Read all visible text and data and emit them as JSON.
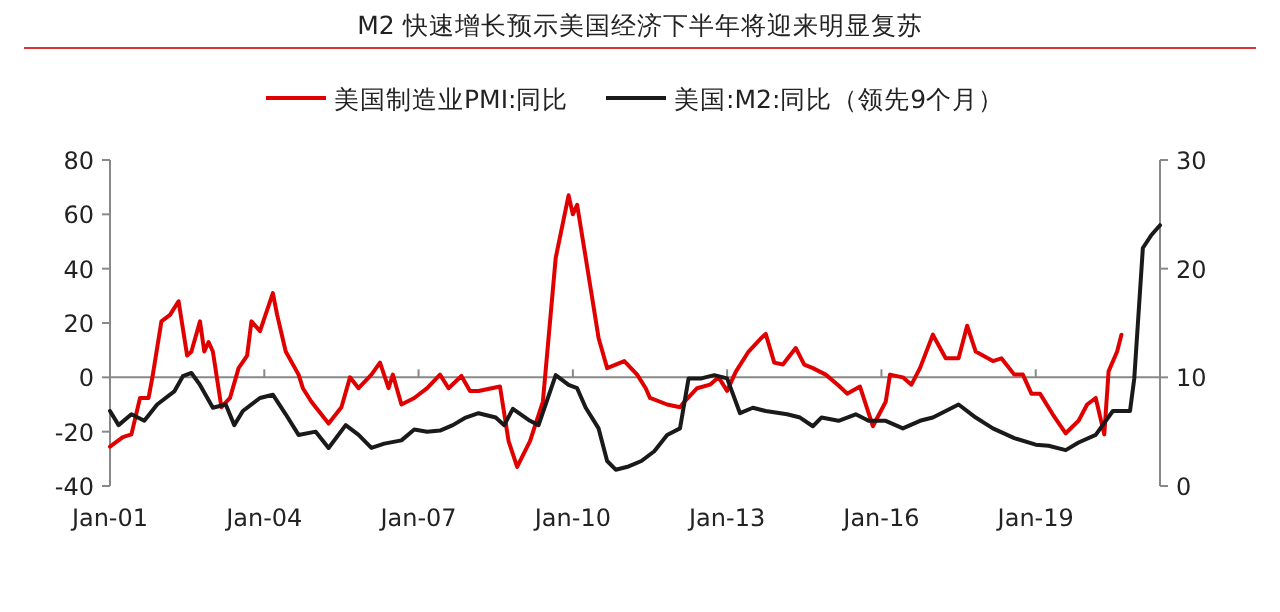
{
  "chart_data": {
    "type": "line",
    "title": "M2 快速增长预示美国经济下半年将迎来明显复苏",
    "legend": "top",
    "xlim": [
      "2001-01",
      "2021-06"
    ],
    "xticks": [
      {
        "value": "2001-01",
        "label": "Jan-01"
      },
      {
        "value": "2004-01",
        "label": "Jan-04"
      },
      {
        "value": "2007-01",
        "label": "Jan-07"
      },
      {
        "value": "2010-01",
        "label": "Jan-10"
      },
      {
        "value": "2013-01",
        "label": "Jan-13"
      },
      {
        "value": "2016-01",
        "label": "Jan-16"
      },
      {
        "value": "2019-01",
        "label": "Jan-19"
      }
    ],
    "ylim": [
      -40,
      80
    ],
    "yticks": [
      -40,
      -20,
      0,
      20,
      40,
      60,
      80
    ],
    "y2lim": [
      0,
      30
    ],
    "y2ticks": [
      0,
      10,
      20,
      30
    ],
    "series": [
      {
        "name": "美国制造业PMI:同比",
        "color": "#e00000",
        "x": [
          "2001-01",
          "2001-04",
          "2001-06",
          "2001-08",
          "2001-10",
          "2001-11",
          "2002-01",
          "2002-03",
          "2002-05",
          "2002-07",
          "2002-08",
          "2002-10",
          "2002-11",
          "2002-12",
          "2003-01",
          "2003-03",
          "2003-05",
          "2003-07",
          "2003-09",
          "2003-10",
          "2003-12",
          "2004-03",
          "2004-04",
          "2004-06",
          "2004-09",
          "2004-10",
          "2004-12",
          "2005-04",
          "2005-07",
          "2005-09",
          "2005-11",
          "2006-02",
          "2006-04",
          "2006-06",
          "2006-07",
          "2006-09",
          "2006-12",
          "2007-03",
          "2007-06",
          "2007-08",
          "2007-11",
          "2008-01",
          "2008-03",
          "2008-08",
          "2008-10",
          "2008-12",
          "2009-03",
          "2009-06",
          "2009-09",
          "2009-12",
          "2010-01",
          "2010-02",
          "2010-04",
          "2010-07",
          "2010-09",
          "2011-01",
          "2011-04",
          "2011-06",
          "2011-07",
          "2011-11",
          "2012-02",
          "2012-03",
          "2012-06",
          "2012-09",
          "2012-11",
          "2013-01",
          "2013-03",
          "2013-06",
          "2013-09",
          "2013-10",
          "2013-12",
          "2014-02",
          "2014-05",
          "2014-07",
          "2014-09",
          "2014-12",
          "2015-03",
          "2015-05",
          "2015-08",
          "2015-11",
          "2016-02",
          "2016-03",
          "2016-06",
          "2016-08",
          "2016-10",
          "2017-01",
          "2017-04",
          "2017-07",
          "2017-09",
          "2017-11",
          "2018-03",
          "2018-05",
          "2018-08",
          "2018-10",
          "2018-12",
          "2019-02",
          "2019-05",
          "2019-08",
          "2019-11",
          "2020-01",
          "2020-03",
          "2020-05",
          "2020-06",
          "2020-08",
          "2020-09"
        ],
        "values": [
          -25.5,
          -22,
          -21,
          -7.6,
          -7.6,
          1,
          20.6,
          23,
          28,
          8,
          9.5,
          20.6,
          9.5,
          13,
          9.5,
          -11,
          -7.6,
          3.4,
          8,
          20.6,
          17,
          31,
          23,
          9.5,
          1,
          -4,
          -9,
          -17,
          -11,
          0,
          -4,
          1,
          5.4,
          -4,
          1,
          -10,
          -7.6,
          -4,
          1,
          -4,
          0.5,
          -5,
          -5,
          -3.4,
          -23.5,
          -33,
          -23.5,
          -9,
          44,
          67,
          60,
          63.5,
          44,
          14.5,
          3.4,
          6,
          1,
          -4,
          -7.6,
          -10,
          -11,
          -9,
          -4,
          -2.7,
          0,
          -5,
          2,
          9.5,
          14.5,
          16,
          5.4,
          4.7,
          10.8,
          4.7,
          3.4,
          1,
          -3,
          -6,
          -3.4,
          -18,
          -9,
          1,
          0,
          -2.7,
          3.4,
          15.7,
          7,
          7,
          19,
          9.5,
          6,
          7,
          1,
          1,
          -6,
          -6,
          -13.7,
          -20.6,
          -16,
          -10,
          -7.6,
          -21,
          2.2,
          9.5,
          15.7
        ]
      },
      {
        "name": "美国:M2:同比（领先9个月）",
        "color": "#1a1a1a",
        "axis": "y2",
        "x": [
          "2001-01",
          "2001-03",
          "2001-06",
          "2001-09",
          "2001-12",
          "2002-04",
          "2002-06",
          "2002-08",
          "2002-10",
          "2003-01",
          "2003-04",
          "2003-06",
          "2003-08",
          "2003-12",
          "2004-03",
          "2004-06",
          "2004-09",
          "2005-01",
          "2005-04",
          "2005-08",
          "2005-11",
          "2006-02",
          "2006-05",
          "2006-09",
          "2006-12",
          "2007-03",
          "2007-06",
          "2007-09",
          "2007-12",
          "2008-03",
          "2008-07",
          "2008-09",
          "2008-11",
          "2009-03",
          "2009-05",
          "2009-09",
          "2009-12",
          "2010-02",
          "2010-04",
          "2010-07",
          "2010-09",
          "2010-11",
          "2011-02",
          "2011-05",
          "2011-08",
          "2011-11",
          "2012-02",
          "2012-04",
          "2012-07",
          "2012-10",
          "2013-01",
          "2013-04",
          "2013-07",
          "2013-10",
          "2014-03",
          "2014-06",
          "2014-09",
          "2014-11",
          "2015-03",
          "2015-07",
          "2015-10",
          "2016-02",
          "2016-06",
          "2016-10",
          "2017-01",
          "2017-04",
          "2017-07",
          "2017-11",
          "2018-03",
          "2018-08",
          "2019-01",
          "2019-04",
          "2019-08",
          "2019-11",
          "2020-03",
          "2020-07",
          "2020-11",
          "2020-12",
          "2021-02",
          "2021-04",
          "2021-06"
        ],
        "values": [
          6.9,
          5.6,
          6.6,
          6.0,
          7.5,
          8.7,
          10.1,
          10.4,
          9.3,
          7.2,
          7.5,
          5.6,
          6.9,
          8.1,
          8.4,
          6.6,
          4.7,
          5.0,
          3.5,
          5.6,
          4.7,
          3.5,
          3.9,
          4.2,
          5.2,
          5.0,
          5.1,
          5.6,
          6.3,
          6.7,
          6.3,
          5.6,
          7.1,
          6.0,
          5.6,
          10.2,
          9.3,
          9.0,
          7.2,
          5.3,
          2.3,
          1.5,
          1.8,
          2.3,
          3.2,
          4.7,
          5.3,
          9.9,
          9.9,
          10.2,
          9.9,
          6.7,
          7.2,
          6.9,
          6.6,
          6.3,
          5.5,
          6.3,
          6.0,
          6.6,
          6.0,
          6.0,
          5.3,
          6.0,
          6.3,
          6.9,
          7.5,
          6.3,
          5.3,
          4.4,
          3.8,
          3.7,
          3.3,
          4.0,
          4.7,
          6.9,
          6.9,
          9.9,
          21.9,
          23.1,
          24.0
        ]
      }
    ]
  }
}
